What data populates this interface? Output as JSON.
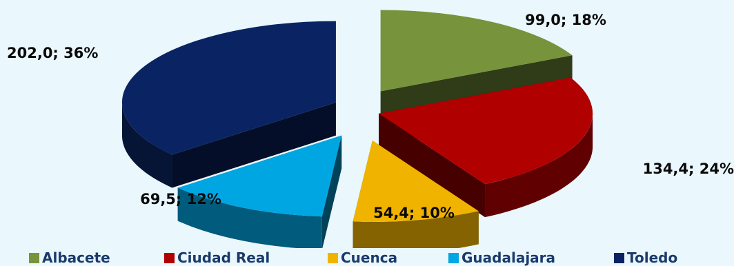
{
  "chart_data": {
    "type": "pie",
    "variant": "3d-exploded",
    "title": "",
    "slices": [
      {
        "name": "Albacete",
        "value": 99.0,
        "percent": 18,
        "label": "99,0; 18%",
        "color": "#77933c"
      },
      {
        "name": "Ciudad Real",
        "value": 134.4,
        "percent": 24,
        "label": "134,4; 24%",
        "color": "#b00000"
      },
      {
        "name": "Cuenca",
        "value": 54.4,
        "percent": 10,
        "label": "54,4; 10%",
        "color": "#f0b400"
      },
      {
        "name": "Guadalajara",
        "value": 69.5,
        "percent": 12,
        "label": "69,5; 12%",
        "color": "#00a6e2"
      },
      {
        "name": "Toledo",
        "value": 202.0,
        "percent": 36,
        "label": "202,0; 36%",
        "color": "#0a2463"
      }
    ],
    "legend_position": "bottom",
    "legend_color": "#1b3a6b"
  }
}
